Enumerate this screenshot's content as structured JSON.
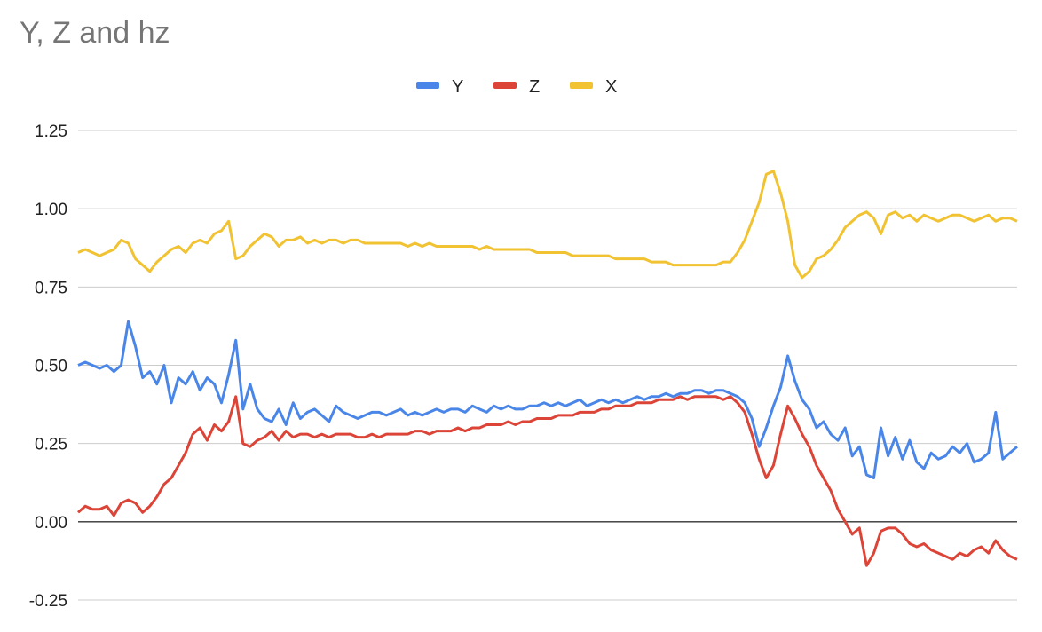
{
  "chart_data": {
    "type": "line",
    "title": "Y, Z and hz",
    "xlabel": "",
    "ylabel": "",
    "ylim": [
      -0.25,
      1.25
    ],
    "yticks": [
      -0.25,
      0,
      0.25,
      0.5,
      0.75,
      1,
      1.25
    ],
    "ytick_labels": [
      "-0.25",
      "0.00",
      "0.25",
      "0.50",
      "0.75",
      "1.00",
      "1.25"
    ],
    "grid": true,
    "legend_position": "top",
    "series": [
      {
        "name": "Y",
        "color": "#4a86e8",
        "values": [
          0.5,
          0.51,
          0.5,
          0.49,
          0.5,
          0.48,
          0.5,
          0.64,
          0.56,
          0.46,
          0.48,
          0.44,
          0.5,
          0.38,
          0.46,
          0.44,
          0.48,
          0.42,
          0.46,
          0.44,
          0.38,
          0.47,
          0.58,
          0.36,
          0.44,
          0.36,
          0.33,
          0.32,
          0.36,
          0.31,
          0.38,
          0.33,
          0.35,
          0.36,
          0.34,
          0.32,
          0.37,
          0.35,
          0.34,
          0.33,
          0.34,
          0.35,
          0.35,
          0.34,
          0.35,
          0.36,
          0.34,
          0.35,
          0.34,
          0.35,
          0.36,
          0.35,
          0.36,
          0.36,
          0.35,
          0.37,
          0.36,
          0.35,
          0.37,
          0.36,
          0.37,
          0.36,
          0.36,
          0.37,
          0.37,
          0.38,
          0.37,
          0.38,
          0.37,
          0.38,
          0.39,
          0.37,
          0.38,
          0.39,
          0.38,
          0.39,
          0.38,
          0.39,
          0.4,
          0.39,
          0.4,
          0.4,
          0.41,
          0.4,
          0.41,
          0.41,
          0.42,
          0.42,
          0.41,
          0.42,
          0.42,
          0.41,
          0.4,
          0.38,
          0.33,
          0.24,
          0.3,
          0.37,
          0.43,
          0.53,
          0.45,
          0.39,
          0.36,
          0.3,
          0.32,
          0.28,
          0.26,
          0.3,
          0.21,
          0.24,
          0.15,
          0.14,
          0.3,
          0.21,
          0.27,
          0.2,
          0.26,
          0.19,
          0.17,
          0.22,
          0.2,
          0.21,
          0.24,
          0.22,
          0.25,
          0.19,
          0.2,
          0.22,
          0.35,
          0.2,
          0.22,
          0.24
        ]
      },
      {
        "name": "Z",
        "color": "#db4437",
        "values": [
          0.03,
          0.05,
          0.04,
          0.04,
          0.05,
          0.02,
          0.06,
          0.07,
          0.06,
          0.03,
          0.05,
          0.08,
          0.12,
          0.14,
          0.18,
          0.22,
          0.28,
          0.3,
          0.26,
          0.31,
          0.29,
          0.32,
          0.4,
          0.25,
          0.24,
          0.26,
          0.27,
          0.29,
          0.26,
          0.29,
          0.27,
          0.28,
          0.28,
          0.27,
          0.28,
          0.27,
          0.28,
          0.28,
          0.28,
          0.27,
          0.27,
          0.28,
          0.27,
          0.28,
          0.28,
          0.28,
          0.28,
          0.29,
          0.29,
          0.28,
          0.29,
          0.29,
          0.29,
          0.3,
          0.29,
          0.3,
          0.3,
          0.31,
          0.31,
          0.31,
          0.32,
          0.31,
          0.32,
          0.32,
          0.33,
          0.33,
          0.33,
          0.34,
          0.34,
          0.34,
          0.35,
          0.35,
          0.35,
          0.36,
          0.36,
          0.37,
          0.37,
          0.37,
          0.38,
          0.38,
          0.38,
          0.39,
          0.39,
          0.39,
          0.4,
          0.39,
          0.4,
          0.4,
          0.4,
          0.4,
          0.39,
          0.4,
          0.38,
          0.35,
          0.28,
          0.2,
          0.14,
          0.18,
          0.28,
          0.37,
          0.33,
          0.28,
          0.24,
          0.18,
          0.14,
          0.1,
          0.04,
          0.0,
          -0.04,
          -0.02,
          -0.14,
          -0.1,
          -0.03,
          -0.02,
          -0.02,
          -0.04,
          -0.07,
          -0.08,
          -0.07,
          -0.09,
          -0.1,
          -0.11,
          -0.12,
          -0.1,
          -0.11,
          -0.09,
          -0.08,
          -0.1,
          -0.06,
          -0.09,
          -0.11,
          -0.12
        ]
      },
      {
        "name": "X",
        "color": "#f1c232",
        "values": [
          0.86,
          0.87,
          0.86,
          0.85,
          0.86,
          0.87,
          0.9,
          0.89,
          0.84,
          0.82,
          0.8,
          0.83,
          0.85,
          0.87,
          0.88,
          0.86,
          0.89,
          0.9,
          0.89,
          0.92,
          0.93,
          0.96,
          0.84,
          0.85,
          0.88,
          0.9,
          0.92,
          0.91,
          0.88,
          0.9,
          0.9,
          0.91,
          0.89,
          0.9,
          0.89,
          0.9,
          0.9,
          0.89,
          0.9,
          0.9,
          0.89,
          0.89,
          0.89,
          0.89,
          0.89,
          0.89,
          0.88,
          0.89,
          0.88,
          0.89,
          0.88,
          0.88,
          0.88,
          0.88,
          0.88,
          0.88,
          0.87,
          0.88,
          0.87,
          0.87,
          0.87,
          0.87,
          0.87,
          0.87,
          0.86,
          0.86,
          0.86,
          0.86,
          0.86,
          0.85,
          0.85,
          0.85,
          0.85,
          0.85,
          0.85,
          0.84,
          0.84,
          0.84,
          0.84,
          0.84,
          0.83,
          0.83,
          0.83,
          0.82,
          0.82,
          0.82,
          0.82,
          0.82,
          0.82,
          0.82,
          0.83,
          0.83,
          0.86,
          0.9,
          0.96,
          1.02,
          1.11,
          1.12,
          1.05,
          0.96,
          0.82,
          0.78,
          0.8,
          0.84,
          0.85,
          0.87,
          0.9,
          0.94,
          0.96,
          0.98,
          0.99,
          0.97,
          0.92,
          0.98,
          0.99,
          0.97,
          0.98,
          0.96,
          0.98,
          0.97,
          0.96,
          0.97,
          0.98,
          0.98,
          0.97,
          0.96,
          0.97,
          0.98,
          0.96,
          0.97,
          0.97,
          0.96
        ]
      }
    ]
  }
}
